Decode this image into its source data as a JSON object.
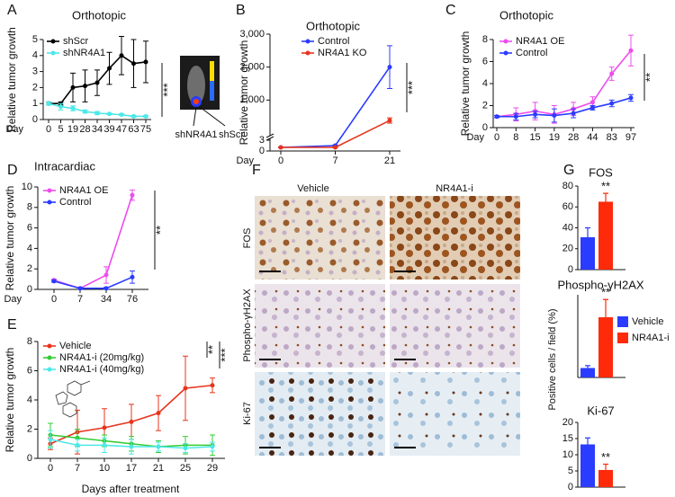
{
  "chart_data": [
    {
      "type": "line",
      "panel": "A",
      "title": "Orthotopic",
      "ylabel": "Relative tumor growth",
      "xlabel": "Day",
      "categories": [
        "0",
        "5",
        "19",
        "28",
        "34",
        "39",
        "47",
        "63",
        "75"
      ],
      "ylim": [
        0,
        5
      ],
      "yticks": [
        0,
        1,
        2,
        3,
        4,
        5
      ],
      "series": [
        {
          "name": "shScr",
          "color": "#000000",
          "values": [
            1,
            1,
            2,
            2.1,
            2.3,
            3.2,
            4,
            3.5,
            3.6
          ],
          "errors": [
            0.1,
            0.1,
            0.9,
            1,
            0.8,
            1,
            1.2,
            1.5,
            1.3
          ]
        },
        {
          "name": "shNR4A1",
          "color": "#4de8e8",
          "values": [
            1,
            0.8,
            0.7,
            0.5,
            0.4,
            0.35,
            0.3,
            0.2,
            0.2
          ],
          "errors": [
            0.1,
            0.2,
            0.15,
            0.1,
            0.1,
            0.05,
            0.05,
            0.05,
            0.05
          ]
        }
      ],
      "annotations": [
        "***"
      ],
      "inset_labels": [
        "shNR4A1",
        "shScr"
      ]
    },
    {
      "type": "line",
      "panel": "B",
      "title": "Orthotopic",
      "ylabel": "Relative tumor growth",
      "xlabel": "Day",
      "categories": [
        "0",
        "7",
        "21"
      ],
      "ylim": [
        0,
        3000
      ],
      "axis_break": 3,
      "yticks": [
        0,
        3,
        {
          "value": 1000,
          "label": "1,000"
        },
        {
          "value": 2000,
          "label": "2,000"
        },
        {
          "value": 3000,
          "label": "3,000"
        }
      ],
      "series": [
        {
          "name": "Control",
          "color": "#2b3cff",
          "values": [
            1,
            1.5,
            2000
          ],
          "errors": [
            0.1,
            0.2,
            650
          ]
        },
        {
          "name": "NR4A1 KO",
          "color": "#e8341c",
          "values": [
            1,
            1,
            380
          ],
          "errors": [
            0.1,
            0.1,
            80
          ]
        }
      ],
      "annotations": [
        "***"
      ]
    },
    {
      "type": "line",
      "panel": "C",
      "title": "Orthotopic",
      "ylabel": "Relative tumor growth",
      "xlabel": "Day",
      "categories": [
        "0",
        "8",
        "15",
        "19",
        "28",
        "44",
        "83",
        "97"
      ],
      "ylim": [
        0,
        8
      ],
      "yticks": [
        0,
        2,
        4,
        6,
        8
      ],
      "series": [
        {
          "name": "NR4A1 OE",
          "color": "#ee4cee",
          "values": [
            1,
            1.2,
            1.5,
            1.2,
            1.7,
            2.3,
            4.9,
            7
          ],
          "errors": [
            0.1,
            0.6,
            0.8,
            0.8,
            0.6,
            0.5,
            0.6,
            1.4
          ]
        },
        {
          "name": "Control",
          "color": "#2b3cff",
          "values": [
            1,
            1,
            1.2,
            1.1,
            1.3,
            1.8,
            2.2,
            2.7
          ],
          "errors": [
            0.1,
            0.3,
            0.3,
            0.6,
            0.4,
            0.2,
            0.3,
            0.3
          ]
        }
      ],
      "annotations": [
        "**"
      ]
    },
    {
      "type": "line",
      "panel": "D",
      "title": "Intracardiac",
      "ylabel": "Relative tumor growth",
      "xlabel": "Day",
      "categories": [
        "0",
        "7",
        "34",
        "76"
      ],
      "ylim": [
        0,
        10
      ],
      "yticks": [
        0,
        2,
        4,
        6,
        8,
        10
      ],
      "series": [
        {
          "name": "NR4A1 OE",
          "color": "#ee4cee",
          "values": [
            0.9,
            0.1,
            1.4,
            9.2
          ],
          "errors": [
            0.1,
            0.1,
            0.8,
            0.5
          ]
        },
        {
          "name": "Control",
          "color": "#2b3cff",
          "values": [
            0.8,
            0.1,
            0.1,
            1.2
          ],
          "errors": [
            0.1,
            0.1,
            0.1,
            0.6
          ]
        }
      ],
      "annotations": [
        "**"
      ]
    },
    {
      "type": "line",
      "panel": "E",
      "ylabel": "Relative tumor growth",
      "xlabel": "Days after treatment",
      "categories": [
        "0",
        "7",
        "10",
        "17",
        "21",
        "25",
        "29"
      ],
      "ylim": [
        0,
        8
      ],
      "yticks": [
        0,
        2,
        4,
        6,
        8
      ],
      "series": [
        {
          "name": "Vehicle",
          "color": "#e8341c",
          "values": [
            1,
            1.8,
            2.1,
            2.5,
            3.1,
            4.8,
            5
          ],
          "errors": [
            0.4,
            1.5,
            1.3,
            1.2,
            1.2,
            2.2,
            0.5
          ]
        },
        {
          "name": "NR4A1-i (20mg/kg)",
          "color": "#33cc33",
          "values": [
            1.6,
            1.4,
            1.2,
            1,
            0.8,
            0.9,
            0.9
          ],
          "errors": [
            0.8,
            0.6,
            0.4,
            0.5,
            0.4,
            0.6,
            0.7
          ]
        },
        {
          "name": "NR4A1-i (40mg/kg)",
          "color": "#4de8e8",
          "values": [
            1.3,
            0.9,
            0.9,
            0.8,
            0.8,
            0.7,
            0.8
          ],
          "errors": [
            0.6,
            0.4,
            0.5,
            0.5,
            0.3,
            0.3,
            0.3
          ]
        }
      ],
      "annotations": [
        "**",
        "***"
      ]
    },
    {
      "type": "bar",
      "panel": "G",
      "ylabel": "Positive cells / field (%)",
      "categories": [
        "FOS",
        "Phospho-γH2AX",
        "Ki-67"
      ],
      "ylims": [
        [
          0,
          80
        ],
        [
          0,
          7
        ],
        [
          0,
          20
        ]
      ],
      "yticks": [
        [
          0,
          20,
          40,
          60,
          80
        ],
        [],
        [
          0,
          5,
          10,
          15,
          20
        ]
      ],
      "series": [
        {
          "name": "Vehicle",
          "color": "#2a3cff",
          "values": [
            31,
            0.8,
            13.2
          ],
          "errors": [
            9,
            0.2,
            2
          ]
        },
        {
          "name": "NR4A1-i",
          "color": "#ff2a0a",
          "values": [
            65,
            5.1,
            5.3
          ],
          "errors": [
            8,
            1.5,
            1.8
          ]
        }
      ],
      "annotations": [
        "**",
        "**",
        "**"
      ]
    }
  ],
  "figure_f": {
    "panel": "F",
    "columns": [
      "Vehicle",
      "NR4A1-i"
    ],
    "rows": [
      "FOS",
      "Phospho-γH2AX",
      "Ki-67"
    ]
  }
}
